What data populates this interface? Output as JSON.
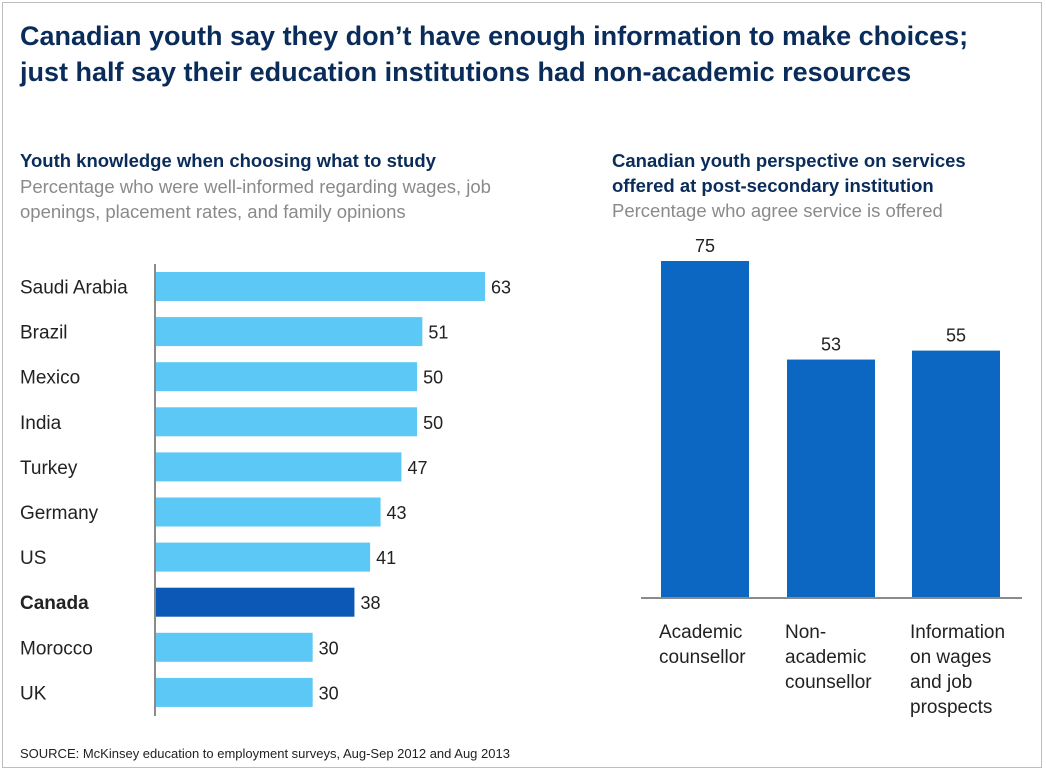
{
  "title": "Canadian youth say they don’t have enough information to make choices; just half say their education institutions had non-academic resources",
  "left_panel": {
    "title": "Youth knowledge when choosing what to study",
    "subtitle": "Percentage who were well-informed regarding wages, job openings, placement rates, and family opinions"
  },
  "right_panel": {
    "title": "Canadian youth perspective on services offered at post-secondary institution",
    "subtitle": "Percentage who agree service is offered"
  },
  "source": "SOURCE: McKinsey education to employment surveys, Aug-Sep 2012 and Aug 2013",
  "colors": {
    "bar": "#5bc8f5",
    "highlight": "#0b58b7",
    "column": "#0b67c2",
    "axis": "#8a8a8a"
  },
  "chart_data": [
    {
      "type": "bar",
      "orientation": "horizontal",
      "categories": [
        "Saudi Arabia",
        "Brazil",
        "Mexico",
        "India",
        "Turkey",
        "Germany",
        "US",
        "Canada",
        "Morocco",
        "UK"
      ],
      "values": [
        63,
        51,
        50,
        50,
        47,
        43,
        41,
        38,
        30,
        30
      ],
      "highlight": "Canada",
      "xlim": [
        0,
        63
      ]
    },
    {
      "type": "bar",
      "orientation": "vertical",
      "categories": [
        [
          "Academic",
          "counsellor"
        ],
        [
          "Non-",
          "academic",
          "counsellor"
        ],
        [
          "Information",
          "on wages",
          "and job",
          "prospects"
        ]
      ],
      "values": [
        75,
        53,
        55
      ],
      "ylim": [
        0,
        75
      ]
    }
  ]
}
